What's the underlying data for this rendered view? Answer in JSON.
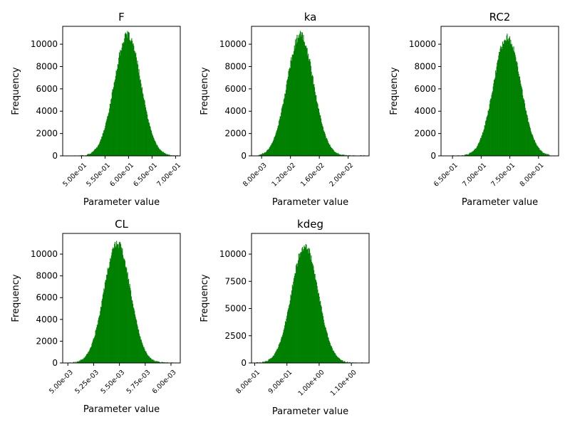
{
  "chart_data": [
    {
      "type": "bar",
      "title": "F",
      "xlabel": "Parameter value",
      "ylabel": "Frequency",
      "bar_color": "#008000",
      "xlim": [
        0.46,
        0.71
      ],
      "ylim": [
        0,
        11600
      ],
      "xticks": [
        0.5,
        0.55,
        0.6,
        0.65,
        0.7
      ],
      "xtick_labels": [
        "5.00e-01",
        "5.50e-01",
        "6.00e-01",
        "6.50e-01",
        "7.00e-01"
      ],
      "yticks": [
        0,
        2000,
        4000,
        6000,
        8000,
        10000
      ],
      "ytick_labels": [
        "0",
        "2000",
        "4000",
        "6000",
        "8000",
        "10000"
      ],
      "histogram": {
        "mean": 0.5977,
        "sd": 0.0284,
        "peak": 10800,
        "range": [
          0.485,
          0.705
        ],
        "bins": 200
      }
    },
    {
      "type": "bar",
      "title": "ka",
      "xlabel": "Parameter value",
      "ylabel": "Frequency",
      "bar_color": "#008000",
      "xlim": [
        0.0066,
        0.0229
      ],
      "ylim": [
        0,
        11600
      ],
      "xticks": [
        0.008,
        0.012,
        0.016,
        0.02
      ],
      "xtick_labels": [
        "8.00e-03",
        "1.20e-02",
        "1.60e-02",
        "2.00e-02"
      ],
      "yticks": [
        0,
        2000,
        4000,
        6000,
        8000,
        10000
      ],
      "ytick_labels": [
        "0",
        "2000",
        "4000",
        "6000",
        "8000",
        "10000"
      ],
      "histogram": {
        "mean": 0.01335,
        "sd": 0.00185,
        "peak": 10800,
        "range": [
          0.0075,
          0.0222
        ],
        "bins": 200
      }
    },
    {
      "type": "bar",
      "title": "RC2",
      "xlabel": "Parameter value",
      "ylabel": "Frequency",
      "bar_color": "#008000",
      "xlim": [
        0.63,
        0.835
      ],
      "ylim": [
        0,
        11600
      ],
      "xticks": [
        0.65,
        0.7,
        0.75,
        0.8
      ],
      "xtick_labels": [
        "6.50e-01",
        "7.00e-01",
        "7.50e-01",
        "8.00e-01"
      ],
      "yticks": [
        0,
        2000,
        4000,
        6000,
        8000,
        10000
      ],
      "ytick_labels": [
        "0",
        "2000",
        "4000",
        "6000",
        "8000",
        "10000"
      ],
      "histogram": {
        "mean": 0.7452,
        "sd": 0.0235,
        "peak": 10700,
        "range": [
          0.645,
          0.82
        ],
        "bins": 200
      }
    },
    {
      "type": "bar",
      "title": "CL",
      "xlabel": "Parameter value",
      "ylabel": "Frequency",
      "bar_color": "#008000",
      "xlim": [
        0.00495,
        0.00609
      ],
      "ylim": [
        0,
        11900
      ],
      "xticks": [
        0.005,
        0.00525,
        0.0055,
        0.00575,
        0.006
      ],
      "xtick_labels": [
        "5.00e-03",
        "5.25e-03",
        "5.50e-03",
        "5.75e-03",
        "6.00e-03"
      ],
      "yticks": [
        0,
        2000,
        4000,
        6000,
        8000,
        10000
      ],
      "ytick_labels": [
        "0",
        "2000",
        "4000",
        "6000",
        "8000",
        "10000"
      ],
      "histogram": {
        "mean": 0.005478,
        "sd": 0.000128,
        "peak": 11000,
        "range": [
          0.00501,
          0.00603
        ],
        "bins": 200
      }
    },
    {
      "type": "bar",
      "title": "kdeg",
      "xlabel": "Parameter value",
      "ylabel": "Frequency",
      "bar_color": "#008000",
      "xlim": [
        0.79,
        1.155
      ],
      "ylim": [
        0,
        11900
      ],
      "xticks": [
        0.8,
        0.9,
        1.0,
        1.1
      ],
      "xtick_labels": [
        "8.00e-01",
        "9.00e-01",
        "1.00e+00",
        "1.10e+00"
      ],
      "yticks": [
        0,
        2500,
        5000,
        7500,
        10000
      ],
      "ytick_labels": [
        "0",
        "2500",
        "5000",
        "7500",
        "10000"
      ],
      "histogram": {
        "mean": 0.9555,
        "sd": 0.0415,
        "peak": 10800,
        "range": [
          0.805,
          1.14
        ],
        "bins": 200
      }
    }
  ]
}
